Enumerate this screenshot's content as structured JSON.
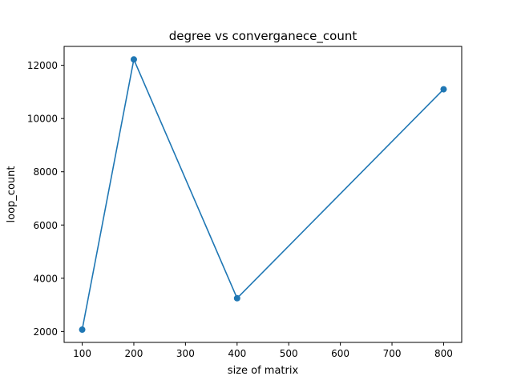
{
  "chart_data": {
    "type": "line",
    "title": "degree vs converganece_count",
    "xlabel": "size of matrix",
    "ylabel": "loop_count",
    "x": [
      100,
      200,
      400,
      800
    ],
    "series": [
      {
        "values": [
          2070,
          12220,
          3250,
          11100
        ],
        "color": "#1f77b4"
      }
    ],
    "xlim": [
      65,
      835
    ],
    "ylim": [
      1590,
      12710
    ],
    "xticks": [
      100,
      200,
      300,
      400,
      500,
      600,
      700,
      800
    ],
    "yticks": [
      2000,
      4000,
      6000,
      8000,
      10000,
      12000
    ],
    "xtick_labels": [
      "100",
      "200",
      "300",
      "400",
      "500",
      "600",
      "700",
      "800"
    ],
    "ytick_labels": [
      "2000",
      "4000",
      "6000",
      "8000",
      "10000",
      "12000"
    ],
    "grid": false,
    "legend": "none",
    "markers": true
  }
}
